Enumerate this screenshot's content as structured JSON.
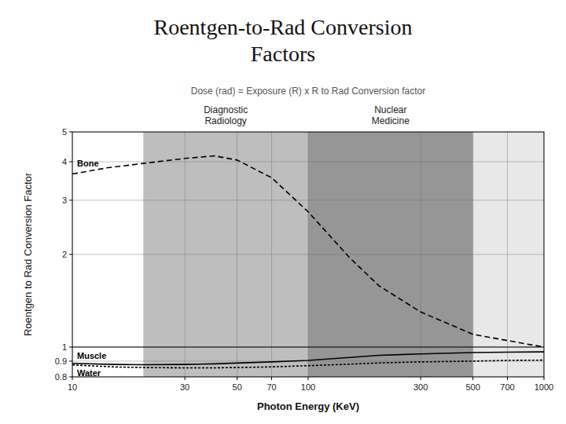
{
  "chart_data": {
    "type": "line",
    "title": "Roentgen-to-Rad Conversion\nFactors",
    "subtitle": "Dose (rad) = Exposure (R) x R to Rad Conversion factor",
    "x_label": "Photon Energy (KeV)",
    "y_label": "Roentgen to Rad Conversion Factor",
    "log": true,
    "grid": true,
    "xlim": [
      10,
      1000
    ],
    "ylim": [
      0.8,
      5
    ],
    "xticks": [
      10,
      30,
      50,
      70,
      100,
      300,
      500,
      700,
      1000
    ],
    "yticks": [
      0.8,
      0.9,
      1,
      2,
      3,
      4,
      5
    ],
    "regions": [
      {
        "label": "Diagnostic\nRadiology",
        "x": [
          20,
          100
        ],
        "color": "#bebebe"
      },
      {
        "label": "Nuclear\nMedicine",
        "x": [
          100,
          500
        ],
        "color": "#969696"
      },
      {
        "x": [
          500,
          1000
        ],
        "color": "#e8e8e8"
      }
    ],
    "series": [
      {
        "x": [
          10,
          1000
        ],
        "values": [
          1.0,
          1.0
        ],
        "color": "#000000",
        "line_style": "solid"
      },
      {
        "name": "Bone",
        "color": "#000000",
        "line_style": "dashed",
        "x": [
          10,
          14,
          20,
          30,
          40,
          50,
          70,
          100,
          150,
          200,
          300,
          500,
          700,
          1000
        ],
        "values": [
          3.65,
          3.82,
          3.95,
          4.1,
          4.18,
          4.05,
          3.55,
          2.75,
          1.95,
          1.58,
          1.3,
          1.1,
          1.05,
          1.0
        ]
      },
      {
        "name": "Muscle",
        "color": "#000000",
        "line_style": "solid",
        "x": [
          10,
          15,
          20,
          30,
          40,
          50,
          70,
          100,
          150,
          200,
          300,
          500,
          700,
          1000
        ],
        "values": [
          0.885,
          0.878,
          0.876,
          0.878,
          0.882,
          0.887,
          0.895,
          0.905,
          0.925,
          0.94,
          0.95,
          0.96,
          0.963,
          0.965
        ]
      },
      {
        "name": "Water",
        "color": "#000000",
        "line_style": "dotted",
        "x": [
          10,
          15,
          20,
          30,
          40,
          50,
          70,
          100,
          150,
          200,
          300,
          500,
          700,
          1000
        ],
        "values": [
          0.875,
          0.862,
          0.858,
          0.856,
          0.856,
          0.858,
          0.862,
          0.87,
          0.88,
          0.888,
          0.895,
          0.9,
          0.905,
          0.907
        ]
      }
    ]
  }
}
